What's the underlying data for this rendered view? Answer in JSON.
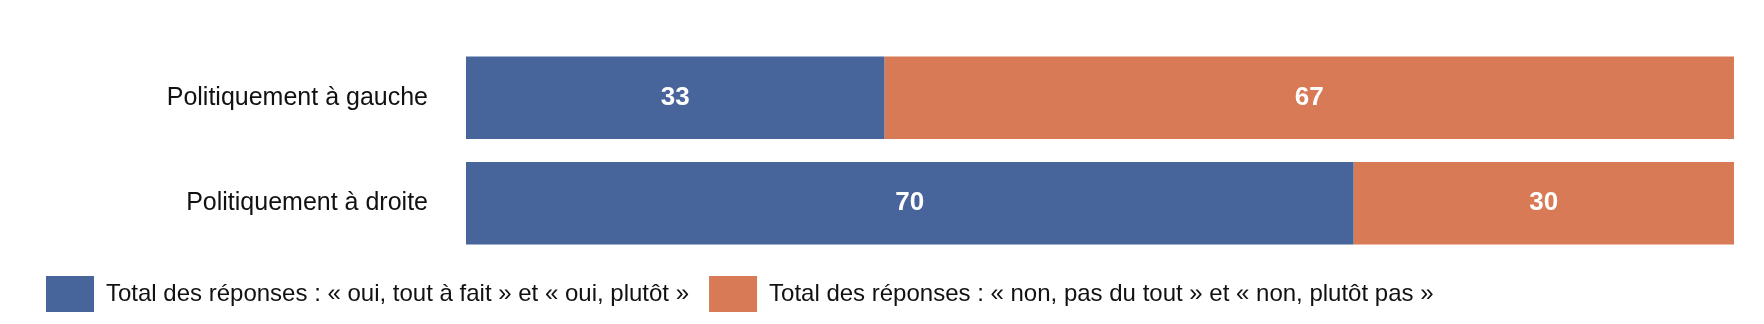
{
  "chart_data": {
    "type": "bar",
    "orientation": "horizontal",
    "stacked": true,
    "categories": [
      "Politiquement à gauche",
      "Politiquement à droite"
    ],
    "series": [
      {
        "name": "Total des réponses : « oui, tout à fait » et « oui, plutôt »",
        "color": "#47659b",
        "values": [
          33,
          70
        ]
      },
      {
        "name": "Total des réponses : « non, pas du tout » et « non, plutôt pas »",
        "color": "#d87a55",
        "values": [
          67,
          30
        ]
      }
    ],
    "xlim": [
      0,
      100
    ],
    "tick_labels": "y",
    "grid": false,
    "legend": "bottom",
    "data_labels": true
  }
}
